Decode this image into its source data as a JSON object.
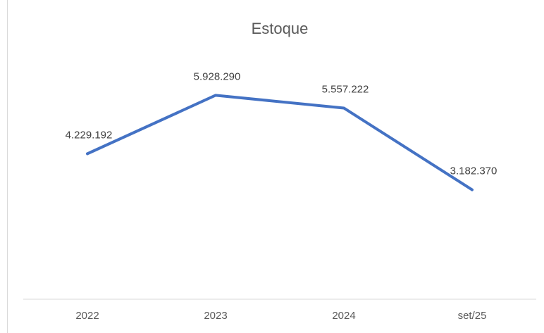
{
  "chart_data": {
    "type": "line",
    "title": "Estoque",
    "categories": [
      "2022",
      "2023",
      "2024",
      "set/25"
    ],
    "values": [
      4229192,
      5928290,
      5557222,
      3182370
    ],
    "value_labels": [
      "4.229.192",
      "5.928.290",
      "5.557.222",
      "3.182.370"
    ],
    "color": "#4472c4",
    "ylim": [
      0,
      7000000
    ]
  }
}
